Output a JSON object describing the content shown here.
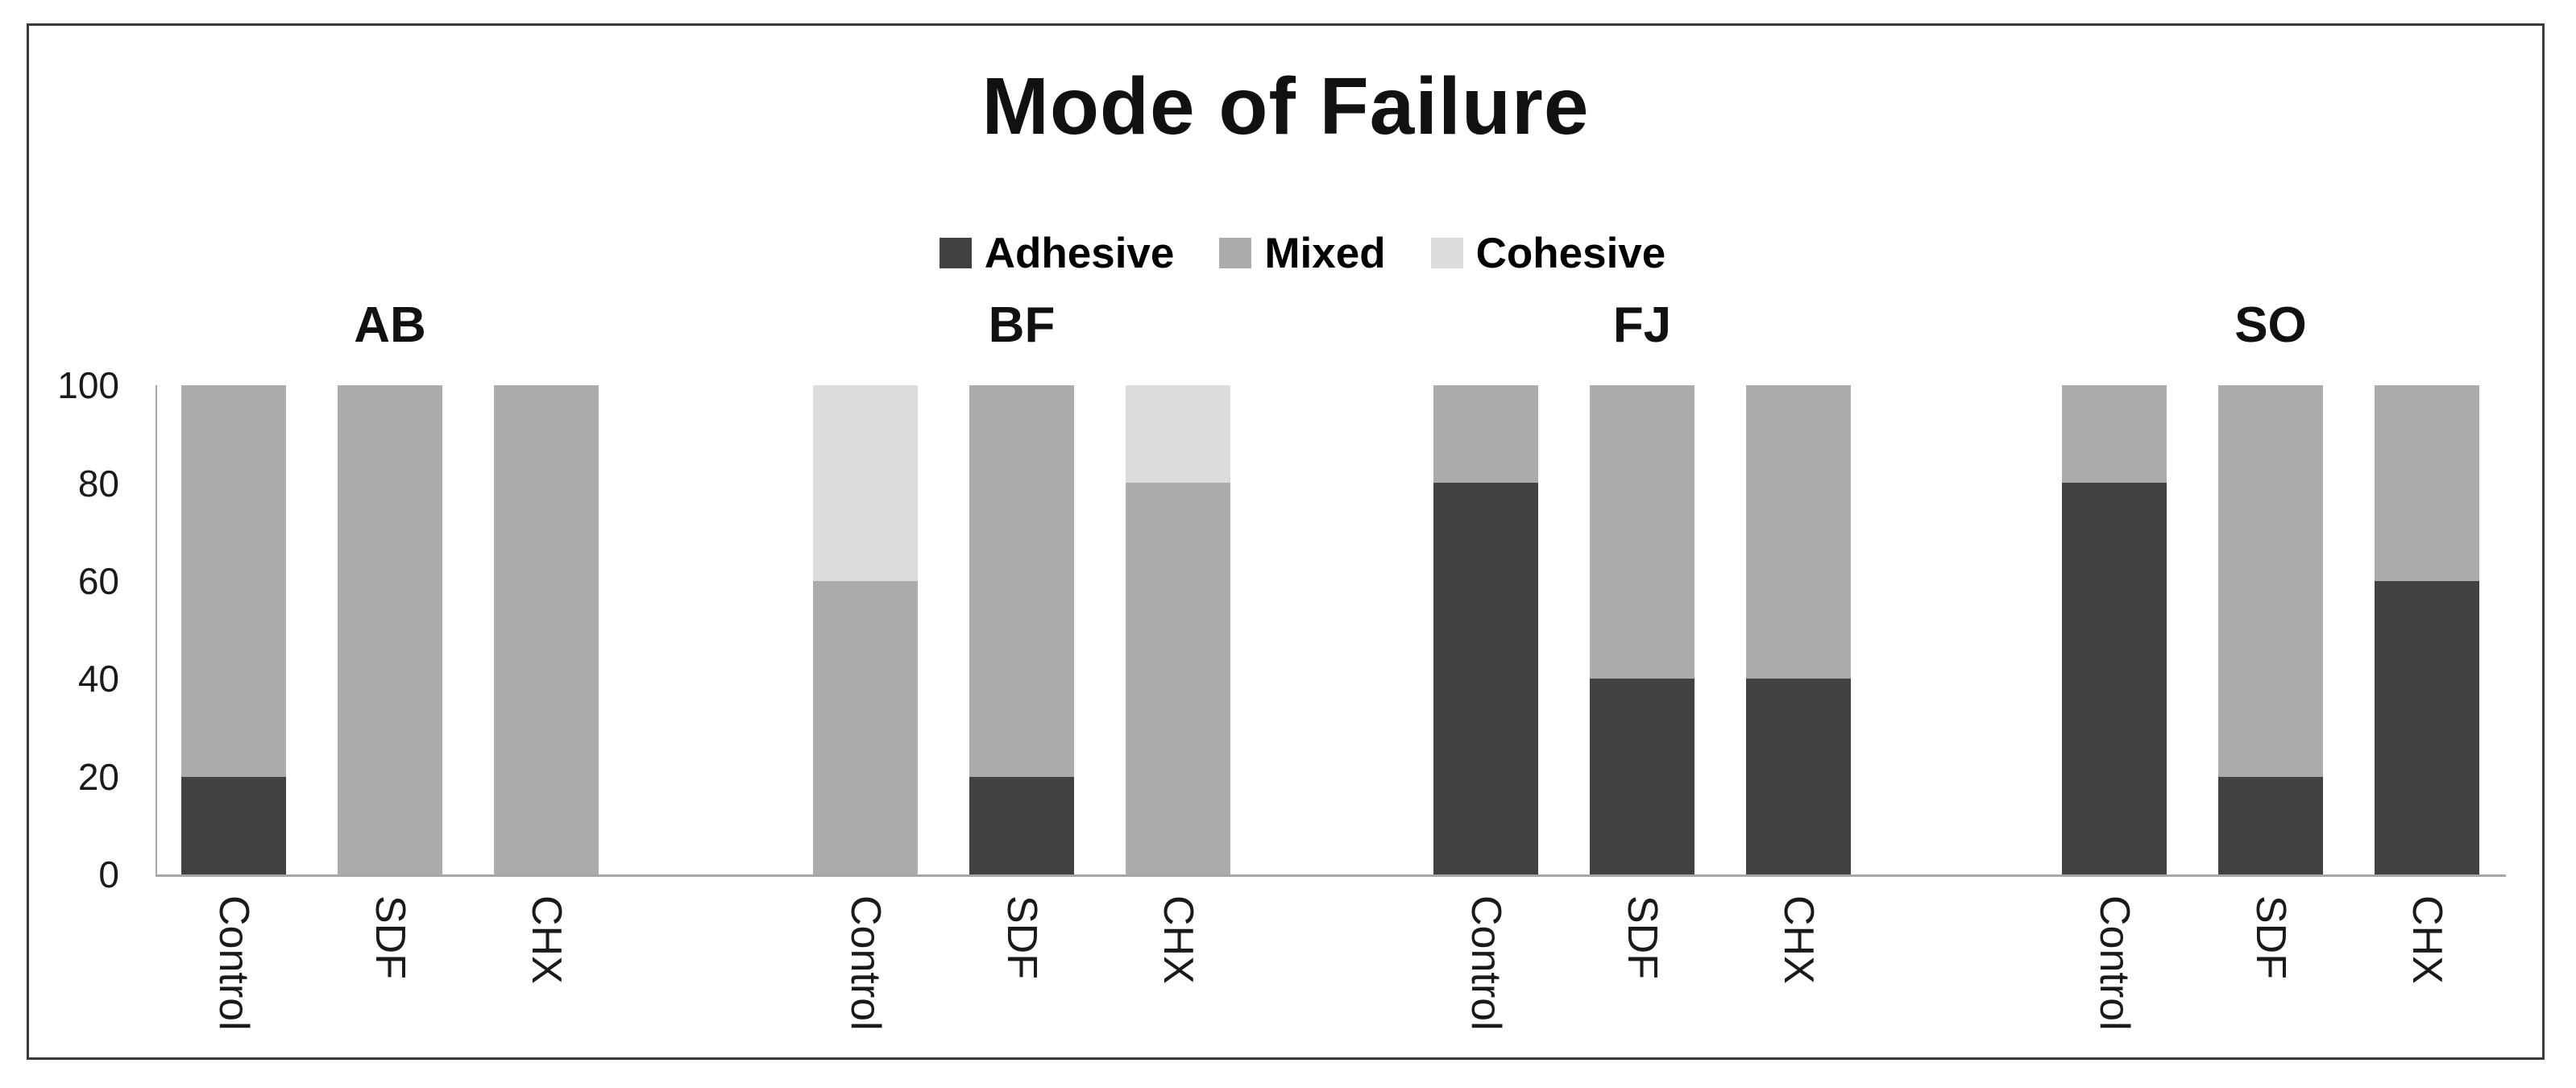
{
  "chart_data": {
    "type": "bar",
    "stacked": true,
    "title": "Mode of Failure",
    "xlabel": "",
    "ylabel": "",
    "ylim": [
      0,
      100
    ],
    "ytick_step": 20,
    "yticks_top_to_bottom": [
      "100",
      "80",
      "60",
      "40",
      "20",
      "0"
    ],
    "grid": "off",
    "legend_position": "top-center",
    "series_order": [
      "Adhesive",
      "Mixed",
      "Cohesive"
    ],
    "series_colors": {
      "Adhesive": "#414141",
      "Mixed": "#ababab",
      "Cohesive": "#dcdcdc"
    },
    "categories": [
      "Control",
      "SDF",
      "CHX"
    ],
    "groups": [
      {
        "label": "AB",
        "bars": [
          {
            "label": "Control",
            "values": {
              "Adhesive": 20,
              "Mixed": 80,
              "Cohesive": 0
            }
          },
          {
            "label": "SDF",
            "values": {
              "Adhesive": 0,
              "Mixed": 100,
              "Cohesive": 0
            }
          },
          {
            "label": "CHX",
            "values": {
              "Adhesive": 0,
              "Mixed": 100,
              "Cohesive": 0
            }
          }
        ]
      },
      {
        "label": "BF",
        "bars": [
          {
            "label": "Control",
            "values": {
              "Adhesive": 0,
              "Mixed": 60,
              "Cohesive": 40
            }
          },
          {
            "label": "SDF",
            "values": {
              "Adhesive": 20,
              "Mixed": 80,
              "Cohesive": 0
            }
          },
          {
            "label": "CHX",
            "values": {
              "Adhesive": 0,
              "Mixed": 80,
              "Cohesive": 20
            }
          }
        ]
      },
      {
        "label": "FJ",
        "bars": [
          {
            "label": "Control",
            "values": {
              "Adhesive": 80,
              "Mixed": 20,
              "Cohesive": 0
            }
          },
          {
            "label": "SDF",
            "values": {
              "Adhesive": 40,
              "Mixed": 60,
              "Cohesive": 0
            }
          },
          {
            "label": "CHX",
            "values": {
              "Adhesive": 40,
              "Mixed": 60,
              "Cohesive": 0
            }
          }
        ]
      },
      {
        "label": "SO",
        "bars": [
          {
            "label": "Control",
            "values": {
              "Adhesive": 80,
              "Mixed": 20,
              "Cohesive": 0
            }
          },
          {
            "label": "SDF",
            "values": {
              "Adhesive": 20,
              "Mixed": 80,
              "Cohesive": 0
            }
          },
          {
            "label": "CHX",
            "values": {
              "Adhesive": 60,
              "Mixed": 40,
              "Cohesive": 0
            }
          }
        ]
      }
    ]
  }
}
